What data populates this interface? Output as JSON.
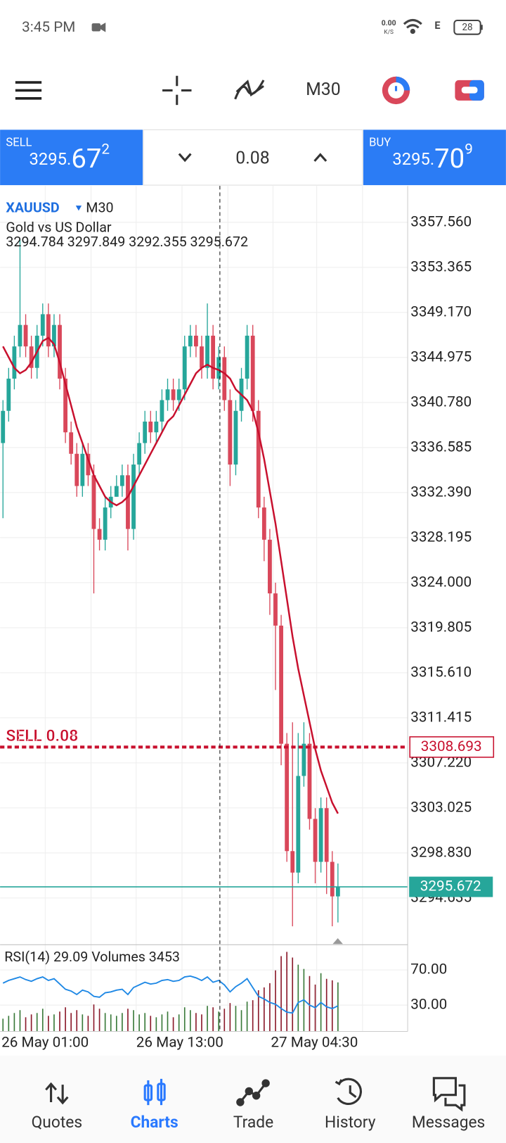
{
  "status_bar": {
    "time": "3:45 PM",
    "speed": "0.00",
    "speed_unit": "K/S",
    "network": "E",
    "battery": "28"
  },
  "toolbar": {
    "timeframe": "M30"
  },
  "trade_bar": {
    "sell": {
      "label": "SELL",
      "price_main": "3295.",
      "price_big": "67",
      "price_sup": "2"
    },
    "lot": "0.08",
    "buy": {
      "label": "BUY",
      "price_main": "3295.",
      "price_big": "70",
      "price_sup": "9"
    }
  },
  "chart_data": {
    "type": "candlestick",
    "symbol": "XAUUSD",
    "timeframe": "M30",
    "description": "Gold vs US Dollar",
    "ohlc_text": "3294.784 3297.849 3292.355 3295.672",
    "bull_color": "#26a69a",
    "bear_color": "#d9475a",
    "ylim": [
      3290.35,
      3360.95
    ],
    "yticks": [
      {
        "value": 3357.56,
        "label": "3357.560"
      },
      {
        "value": 3353.365,
        "label": "3353.365"
      },
      {
        "value": 3349.17,
        "label": "3349.170"
      },
      {
        "value": 3344.975,
        "label": "3344.975"
      },
      {
        "value": 3340.78,
        "label": "3340.780"
      },
      {
        "value": 3336.585,
        "label": "3336.585"
      },
      {
        "value": 3332.39,
        "label": "3332.390"
      },
      {
        "value": 3328.195,
        "label": "3328.195"
      },
      {
        "value": 3324,
        "label": "3324.000"
      },
      {
        "value": 3319.805,
        "label": "3319.805"
      },
      {
        "value": 3315.61,
        "label": "3315.610"
      },
      {
        "value": 3311.415,
        "label": "3311.415"
      },
      {
        "value": 3307.22,
        "label": "3307.220"
      },
      {
        "value": 3303.025,
        "label": "3303.025"
      },
      {
        "value": 3298.83,
        "label": "3298.830"
      },
      {
        "value": 3294.635,
        "label": "3294.635"
      }
    ],
    "open": [
      3337,
      3340,
      3343,
      3346,
      3348,
      3346,
      3344,
      3347,
      3349,
      3346,
      3348,
      3343,
      3338,
      3336,
      3333,
      3336,
      3334,
      3329,
      3328,
      3331,
      3332,
      3333,
      3334,
      3329,
      3335,
      3337,
      3339,
      3338,
      3339,
      3341,
      3342,
      3341,
      3342,
      3346,
      3347,
      3346,
      3344,
      3347,
      3343,
      3345,
      3341,
      3335,
      3340,
      3343,
      3347,
      3340,
      3331,
      3328,
      3323,
      3320,
      3309,
      3299,
      3297,
      3306,
      3309,
      3302,
      3298,
      3303,
      3298,
      3294.784
    ],
    "high": [
      3341,
      3344,
      3347,
      3356,
      3349,
      3347,
      3348,
      3350,
      3350,
      3349,
      3349,
      3344,
      3339,
      3337,
      3337,
      3337,
      3335,
      3330,
      3332,
      3333,
      3334,
      3335,
      3335,
      3336,
      3338,
      3340,
      3340,
      3340,
      3342,
      3343,
      3343,
      3343,
      3347,
      3348,
      3348,
      3347,
      3350,
      3348,
      3346,
      3346,
      3342,
      3341,
      3344,
      3348,
      3348,
      3341,
      3332,
      3329,
      3324,
      3321,
      3310,
      3311,
      3310,
      3311,
      3310,
      3303,
      3304,
      3304,
      3299,
      3297.849
    ],
    "low": [
      3330,
      3339,
      3342,
      3345,
      3345,
      3343,
      3343,
      3346,
      3345,
      3345,
      3342,
      3337,
      3335,
      3332,
      3332,
      3333,
      3323,
      3327,
      3327,
      3330,
      3332,
      3332,
      3327,
      3328,
      3334,
      3336,
      3337,
      3337,
      3338,
      3340,
      3340,
      3340,
      3341,
      3345,
      3345,
      3343,
      3343,
      3342,
      3342,
      3340,
      3333,
      3334,
      3339,
      3342,
      3339,
      3330,
      3326,
      3321,
      3314,
      3307,
      3298,
      3292,
      3296,
      3305,
      3301,
      3296,
      3297,
      3295,
      3292,
      3292.355
    ],
    "close": [
      3340,
      3343,
      3346,
      3348,
      3346,
      3344,
      3347,
      3349,
      3346,
      3348,
      3343,
      3338,
      3336,
      3333,
      3336,
      3334,
      3329,
      3328,
      3331,
      3332,
      3333,
      3334,
      3329,
      3335,
      3337,
      3339,
      3338,
      3339,
      3341,
      3342,
      3341,
      3342,
      3346,
      3347,
      3346,
      3344,
      3347,
      3343,
      3345,
      3341,
      3335,
      3340,
      3343,
      3347,
      3340,
      3331,
      3328,
      3323,
      3320,
      3309,
      3299,
      3297,
      3306,
      3309,
      3302,
      3298,
      3303,
      3298,
      3294.784,
      3295.672
    ],
    "ma": {
      "color": "#c8102e",
      "values": [
        3346,
        3345,
        3344,
        3343.5,
        3343.8,
        3344.5,
        3345.5,
        3346.5,
        3346.8,
        3346.2,
        3344.5,
        3342.5,
        3340.5,
        3338.5,
        3337,
        3335.5,
        3334,
        3333,
        3332,
        3331.5,
        3331.2,
        3331.5,
        3332,
        3333,
        3334,
        3335,
        3336,
        3337,
        3338,
        3339,
        3339.5,
        3340.5,
        3341.5,
        3342.5,
        3343.5,
        3344,
        3344.3,
        3344,
        3343.8,
        3343.5,
        3343,
        3342,
        3341.5,
        3341,
        3340,
        3338,
        3335.5,
        3332.5,
        3329.5,
        3326,
        3322.5,
        3319,
        3316,
        3313.5,
        3311,
        3308.5,
        3306.5,
        3305,
        3303.5,
        3302.5
      ]
    },
    "order_line": {
      "label": "SELL 0.08",
      "price": 3308.693,
      "color": "#c8102e"
    },
    "price_line": {
      "price": 3295.672,
      "color": "#26a69a"
    },
    "x_labels": [
      "26 May 01:00",
      "26 May 13:00",
      "27 May 04:30"
    ],
    "indicator_text": "RSI(14) 29.09 Volumes 3453",
    "rsi": {
      "color": "#1e88e5",
      "values": [
        55,
        58,
        60,
        62,
        59,
        57,
        60,
        62,
        58,
        60,
        54,
        48,
        46,
        42,
        47,
        45,
        40,
        39,
        44,
        45,
        47,
        48,
        42,
        50,
        53,
        56,
        54,
        55,
        58,
        59,
        57,
        58,
        62,
        63,
        61,
        58,
        62,
        56,
        58,
        53,
        45,
        51,
        55,
        60,
        50,
        40,
        37,
        33,
        31,
        26,
        22,
        21,
        33,
        36,
        30,
        27,
        33,
        28,
        26,
        29.09
      ]
    },
    "rsi_ylim": [
      0,
      97
    ],
    "rsi_ticks": [
      {
        "value": 70,
        "label": "70.00"
      },
      {
        "value": 30,
        "label": "30.00"
      }
    ],
    "volumes": [
      900,
      1100,
      1300,
      1500,
      1000,
      1200,
      1300,
      1600,
      1100,
      1200,
      1400,
      1700,
      1300,
      1500,
      1200,
      1100,
      1900,
      1600,
      1300,
      1200,
      1100,
      1300,
      1600,
      1500,
      1200,
      1300,
      1100,
      1000,
      1200,
      1400,
      1000,
      1200,
      1700,
      1500,
      1300,
      1200,
      1800,
      1700,
      1400,
      1600,
      2000,
      1800,
      1500,
      2100,
      2200,
      2900,
      3100,
      3400,
      4300,
      5300,
      5600,
      5200,
      4700,
      4400,
      3900,
      3300,
      4100,
      3700,
      3600,
      3453
    ],
    "volume_lim": [
      0,
      6000
    ]
  },
  "nav": {
    "items": [
      "Quotes",
      "Charts",
      "Trade",
      "History",
      "Messages"
    ],
    "active": 1
  }
}
